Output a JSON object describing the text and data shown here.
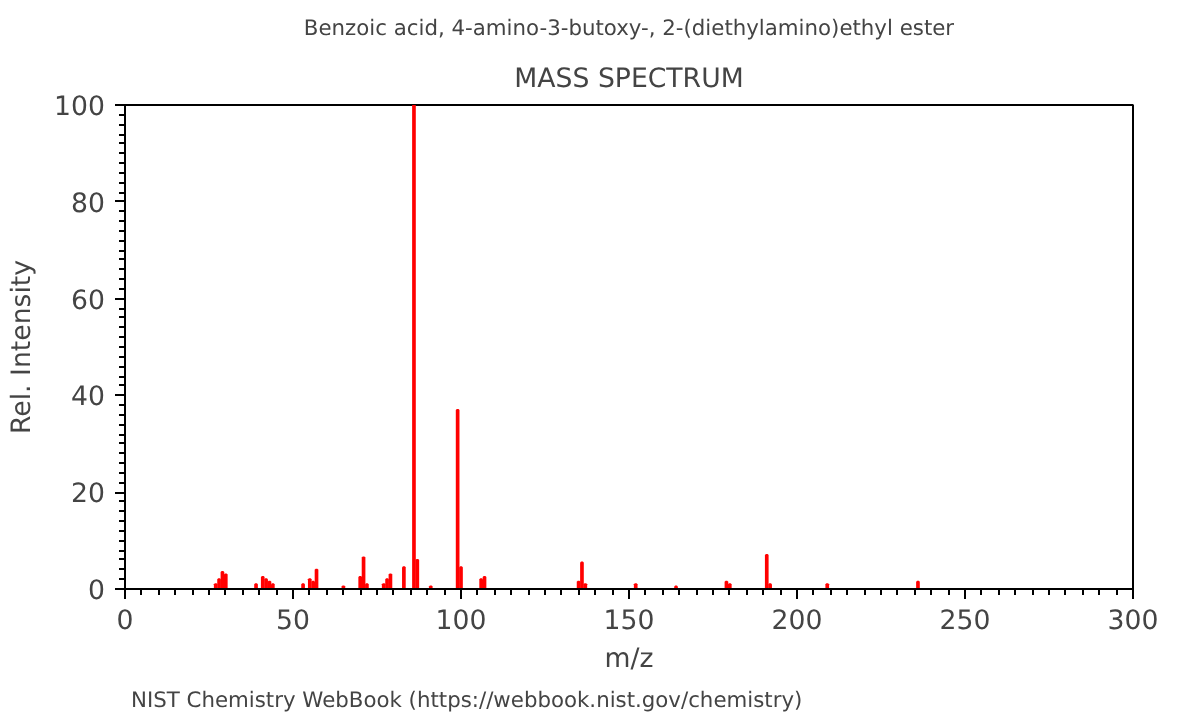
{
  "chart_data": {
    "type": "bar",
    "title": "Benzoic acid, 4-amino-3-butoxy-, 2-(diethylamino)ethyl ester",
    "subtitle": "MASS SPECTRUM",
    "xlabel": "m/z",
    "ylabel": "Rel. Intensity",
    "x": [
      27,
      28,
      29,
      30,
      39,
      41,
      42,
      43,
      44,
      53,
      55,
      56,
      57,
      65,
      70,
      71,
      72,
      77,
      78,
      79,
      83,
      86,
      87,
      91,
      99,
      100,
      106,
      107,
      135,
      136,
      137,
      152,
      164,
      179,
      180,
      191,
      192,
      209,
      236
    ],
    "values": [
      1,
      2,
      3.5,
      3,
      1,
      2.5,
      2,
      1.5,
      1,
      1,
      2,
      1.5,
      4,
      0.5,
      2.5,
      6.5,
      1,
      1,
      2,
      3,
      4.5,
      100,
      6,
      0.5,
      37,
      4.5,
      2,
      2.5,
      1.5,
      5.5,
      1,
      1,
      0.5,
      1.5,
      1,
      7,
      1,
      1,
      1.5
    ],
    "color": "#ff0000",
    "xlim": [
      0,
      300
    ],
    "ylim": [
      0,
      100
    ],
    "xticks": [
      0,
      50,
      100,
      150,
      200,
      250,
      300
    ],
    "yticks": [
      0,
      20,
      40,
      60,
      80,
      100
    ],
    "grid": false,
    "annotations": [
      "NIST Chemistry WebBook (https://webbook.nist.gov/chemistry)"
    ]
  }
}
